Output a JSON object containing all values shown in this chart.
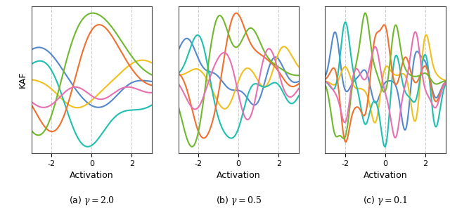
{
  "gamma_values": [
    2.0,
    0.5,
    0.1
  ],
  "titles": [
    "(a) $\\gamma = 2.0$",
    "(b) $\\gamma = 0.5$",
    "(c) $\\gamma = 0.1$"
  ],
  "xlabel": "Activation",
  "ylabel": "KAF",
  "xlim": [
    -3.0,
    3.0
  ],
  "x_ticks": [
    -2,
    0,
    2
  ],
  "n_dict": 11,
  "dict_range": [
    -2.5,
    2.5
  ],
  "n_curves": 6,
  "colors": [
    "#5588cc",
    "#f0c020",
    "#20c0b0",
    "#f07030",
    "#70b830",
    "#e870b0"
  ],
  "line_width": 1.5,
  "seed": 7,
  "figsize": [
    6.4,
    3.03
  ],
  "dpi": 100,
  "background_color": "#ffffff",
  "grid_color": "#bbbbbb",
  "grid_alpha": 0.7
}
